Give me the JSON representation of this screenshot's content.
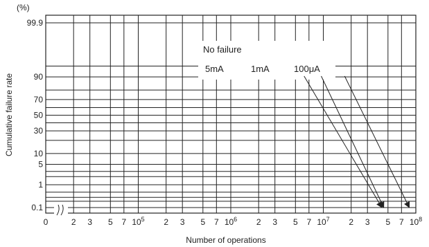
{
  "colors": {
    "line": "#222222",
    "background": "#ffffff"
  },
  "chart_data": {
    "type": "line",
    "title": "",
    "xlabel": "Number of operations",
    "ylabel": "Cumulative failure rate",
    "y_unit": "(%)",
    "x_scale": "log",
    "y_scale": "probability",
    "grid": true,
    "xlim": [
      10000,
      100000000
    ],
    "x_tick_labels": [
      {
        "label": "0"
      },
      {
        "value": 20000,
        "label": "2"
      },
      {
        "value": 30000,
        "label": "3"
      },
      {
        "value": 50000,
        "label": "5"
      },
      {
        "value": 70000,
        "label": "7"
      },
      {
        "value": 100000,
        "label": "10",
        "exp": "5"
      },
      {
        "value": 200000,
        "label": "2"
      },
      {
        "value": 300000,
        "label": "3"
      },
      {
        "value": 500000,
        "label": "5"
      },
      {
        "value": 700000,
        "label": "7"
      },
      {
        "value": 1000000,
        "label": "10",
        "exp": "6"
      },
      {
        "value": 2000000,
        "label": "2"
      },
      {
        "value": 3000000,
        "label": "3"
      },
      {
        "value": 5000000,
        "label": "5"
      },
      {
        "value": 7000000,
        "label": "7"
      },
      {
        "value": 10000000,
        "label": "10",
        "exp": "7"
      },
      {
        "value": 20000000,
        "label": "2"
      },
      {
        "value": 30000000,
        "label": "3"
      },
      {
        "value": 50000000,
        "label": "5"
      },
      {
        "value": 70000000,
        "label": "7"
      },
      {
        "value": 100000000,
        "label": "10",
        "exp": "8"
      }
    ],
    "y_tick_labels": [
      {
        "value": 99.9,
        "label": "99.9"
      },
      {
        "value": 90,
        "label": "90"
      },
      {
        "value": 70,
        "label": "70"
      },
      {
        "value": 50,
        "label": "50"
      },
      {
        "value": 30,
        "label": "30"
      },
      {
        "value": 10,
        "label": "10"
      },
      {
        "value": 5,
        "label": "5"
      },
      {
        "value": 1,
        "label": "1"
      },
      {
        "value": 0.1,
        "label": "0.1"
      }
    ],
    "y_gridlines": [
      99.9,
      95,
      90,
      80,
      70,
      60,
      50,
      40,
      30,
      20,
      10,
      5,
      3,
      2,
      1,
      0.5,
      0.3,
      0.2,
      0.1
    ],
    "legend_box": {
      "title": "No failure",
      "entries": [
        "5mA",
        "1mA",
        "100μA"
      ]
    },
    "series": [
      {
        "name": "5mA",
        "start_x": 6200000,
        "end_x": 43000000
      },
      {
        "name": "1mA",
        "start_x": 9500000,
        "end_x": 45000000
      },
      {
        "name": "100μA",
        "start_x": 17000000,
        "end_x": 85000000
      }
    ]
  }
}
